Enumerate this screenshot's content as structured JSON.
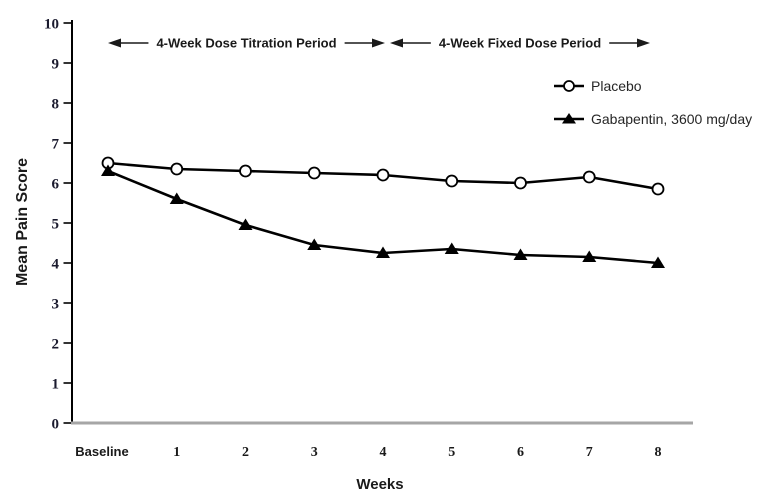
{
  "figure": {
    "kind": "clinical-trial-line-chart"
  },
  "colors": {
    "background": "#ffffff",
    "y_axis": "#000000",
    "x_axis_line": "#a6a6a6",
    "series_line": "#000000",
    "marker_fill_open": "#ffffff",
    "text": "#1a1a1a"
  },
  "chart_data": {
    "type": "line",
    "title": "",
    "xlabel": "Weeks",
    "ylabel": "Mean Pain Score",
    "x_tick_labels": [
      "Baseline",
      "1",
      "2",
      "3",
      "4",
      "5",
      "6",
      "7",
      "8"
    ],
    "y_ticks": [
      0,
      1,
      2,
      3,
      4,
      5,
      6,
      7,
      8,
      9,
      10
    ],
    "ylim": [
      0,
      10
    ],
    "grid": false,
    "legend_position": "upper right",
    "series": [
      {
        "name": "Placebo",
        "marker": "open-circle",
        "color": "#000000",
        "values": [
          6.5,
          6.35,
          6.3,
          6.25,
          6.2,
          6.05,
          6.0,
          6.15,
          5.85
        ]
      },
      {
        "name": "Gabapentin, 3600 mg/day",
        "marker": "filled-triangle",
        "color": "#000000",
        "values": [
          6.3,
          5.6,
          4.95,
          4.45,
          4.25,
          4.35,
          4.2,
          4.15,
          4.0
        ]
      }
    ],
    "annotations": [
      {
        "label": "4-Week Dose Titration Period",
        "from_tick": 0,
        "to_tick": 4,
        "style": "double-arrow"
      },
      {
        "label": "4-Week Fixed Dose Period",
        "from_tick": 4,
        "to_tick": 8,
        "style": "double-arrow"
      }
    ]
  }
}
